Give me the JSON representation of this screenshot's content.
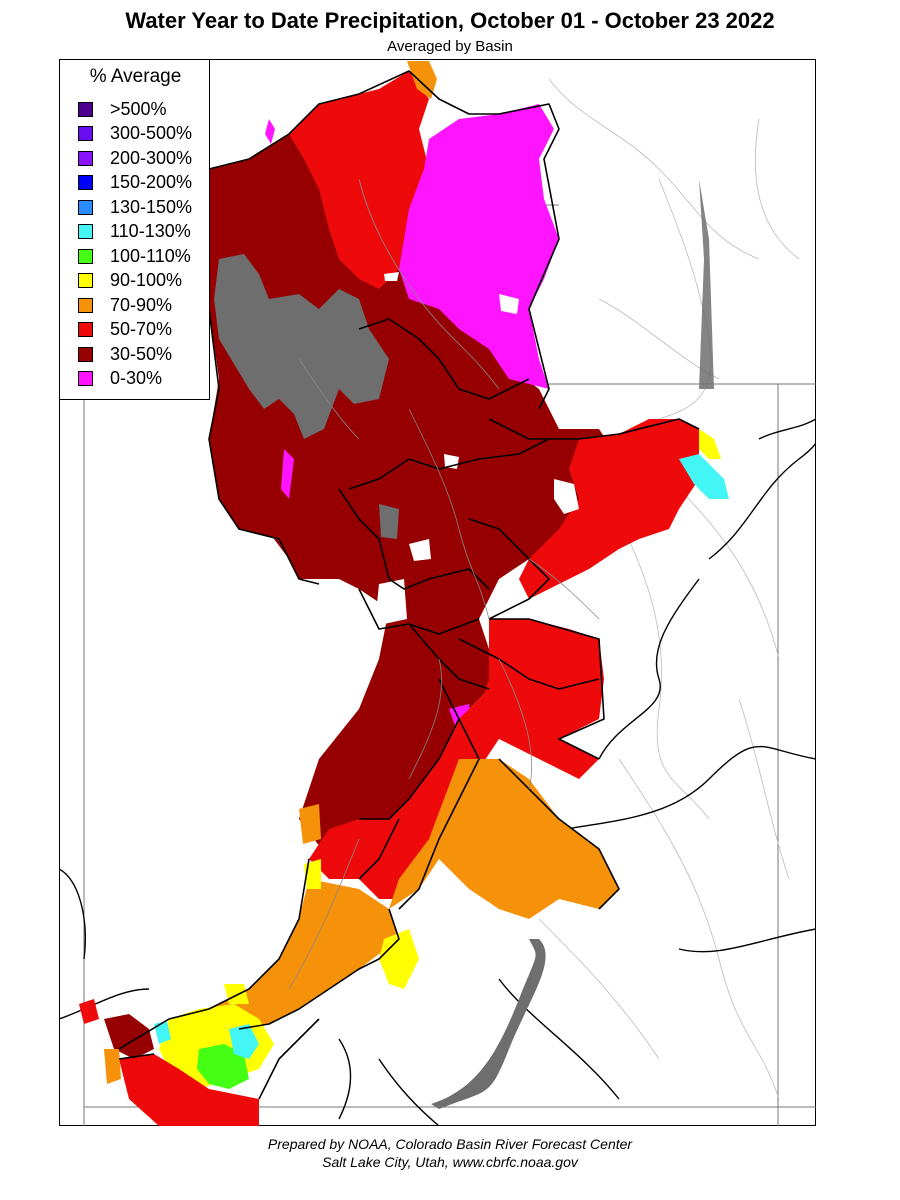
{
  "title": "Water Year to Date Precipitation, October 01  - October 23 2022",
  "subtitle": "Averaged by Basin",
  "legend": {
    "title": "% Average",
    "items": [
      {
        "label": ">500%",
        "color": "#4b0090"
      },
      {
        "label": "300-500%",
        "color": "#6a0cf0"
      },
      {
        "label": "200-300%",
        "color": "#8a14ff"
      },
      {
        "label": "150-200%",
        "color": "#0000ff"
      },
      {
        "label": "130-150%",
        "color": "#2a8cff"
      },
      {
        "label": "110-130%",
        "color": "#44f5f5"
      },
      {
        "label": "100-110%",
        "color": "#44ff14"
      },
      {
        "label": "90-100%",
        "color": "#ffff00"
      },
      {
        "label": "70-90%",
        "color": "#f5920a"
      },
      {
        "label": "50-70%",
        "color": "#ee0a0a"
      },
      {
        "label": "30-50%",
        "color": "#960000"
      },
      {
        "label": "0-30%",
        "color": "#ff14ff"
      }
    ]
  },
  "colors": {
    "no_data": "#6e6e6e",
    "basin_outline": "#000000",
    "river": "#999999",
    "background": "#ffffff"
  },
  "credit": {
    "line1": "Prepared by NOAA, Colorado Basin River Forecast Center",
    "line2": "Salt Lake City, Utah, www.cbrfc.noaa.gov"
  }
}
